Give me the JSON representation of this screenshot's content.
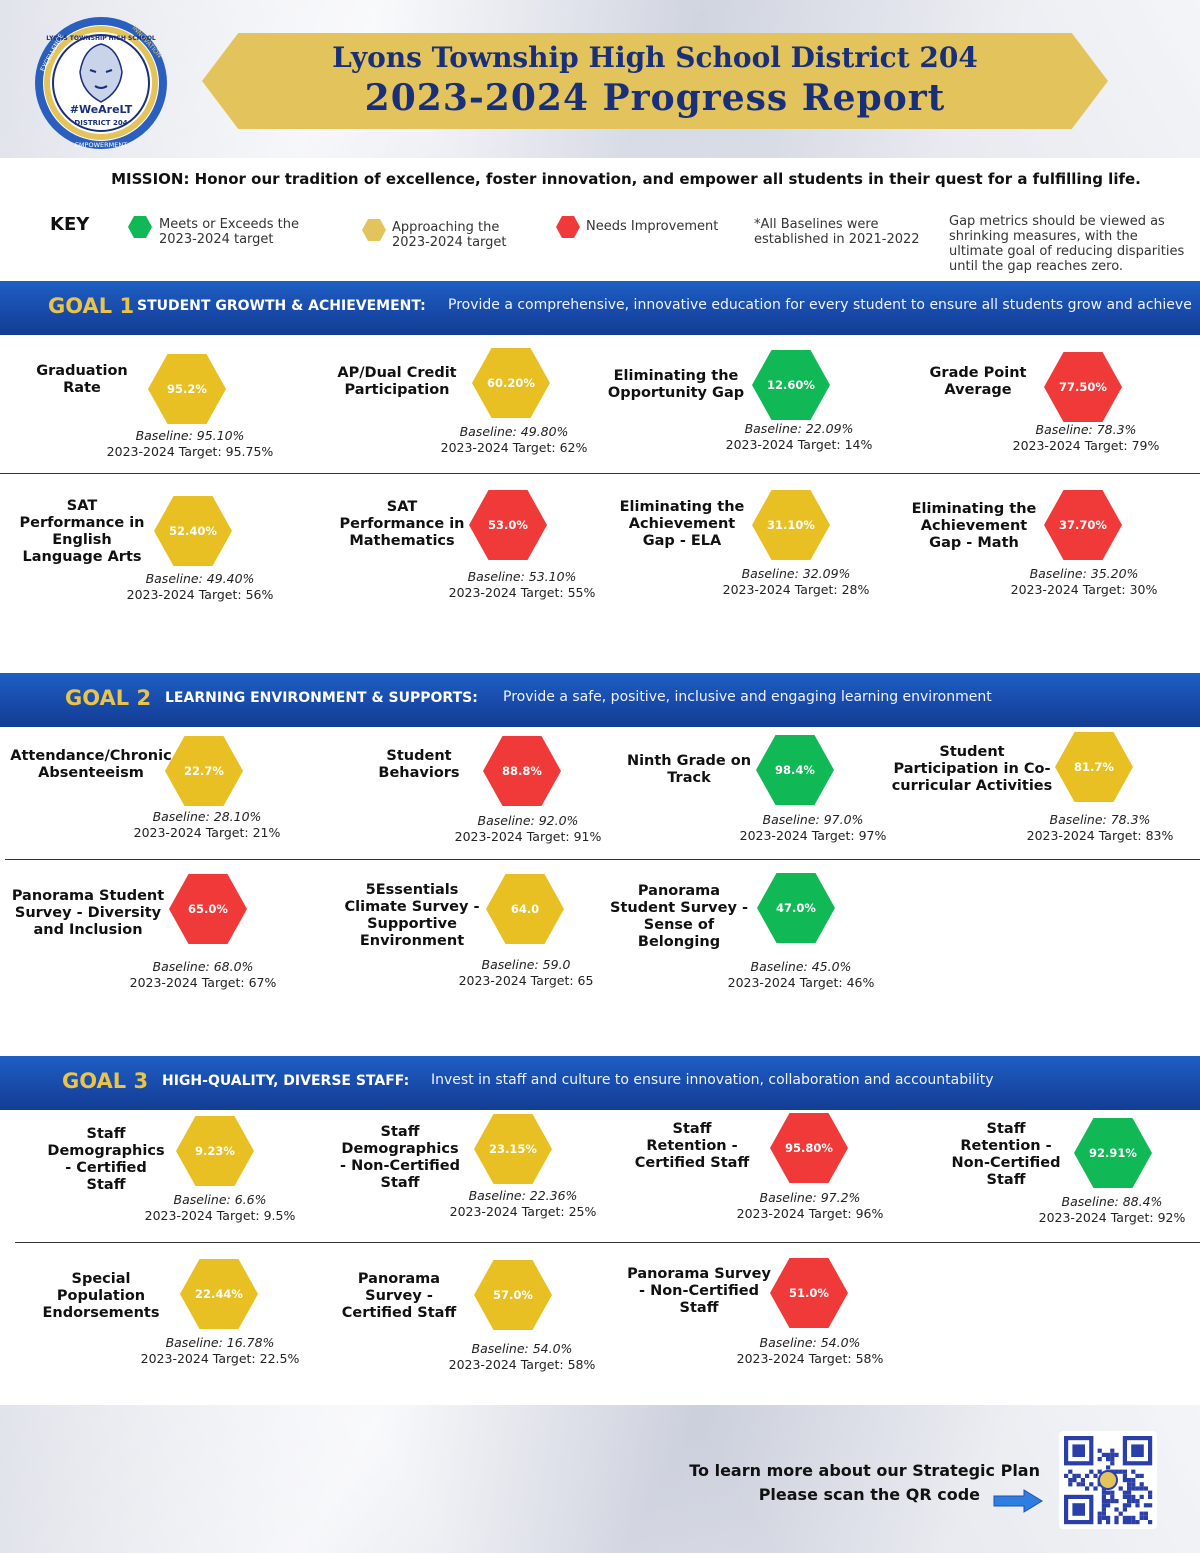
{
  "header": {
    "title_line1": "Lyons Township High School District 204",
    "title_line2": "2023-2024 Progress Report",
    "logo": {
      "ring_top": "LYONS TOWNSHIP HIGH SCHOOL",
      "ring_left": "EXCELLENCE",
      "ring_right": "INNOVATION",
      "ring_bottom": "EMPOWERMENT",
      "hashtag": "#WeAreLT",
      "district": "DISTRICT 204"
    }
  },
  "mission": "MISSION: Honor our tradition of excellence, foster innovation, and empower all students in their quest for a fulfilling life.",
  "key": {
    "title": "KEY",
    "meets_l1": "Meets or Exceeds the",
    "meets_l2": "2023-2024 target",
    "approach_l1": "Approaching the",
    "approach_l2": "2023-2024 target",
    "needs": "Needs Improvement",
    "baseline_l1": "*All Baselines were",
    "baseline_l2": "established in 2021-2022",
    "gap_l1": "Gap metrics should be viewed as",
    "gap_l2": "shrinking measures, with the",
    "gap_l3": "ultimate goal of reducing disparities",
    "gap_l4": "until the gap reaches zero.",
    "colors": {
      "green": "#10b856",
      "yellow": "#e3c45c",
      "red": "#f03a3a"
    }
  },
  "goals": [
    {
      "label": "GOAL 1",
      "name": "STUDENT GROWTH & ACHIEVEMENT:",
      "desc": "Provide a comprehensive, innovative education for every student to ensure all students grow and achieve",
      "metrics": [
        {
          "t1": "Graduation",
          "t2": "Rate",
          "value": "95.2%",
          "status": "yellow",
          "baseline": "Baseline: 95.10%",
          "target": "2023-2024 Target: 95.75%"
        },
        {
          "t1": "AP/Dual Credit",
          "t2": "Participation",
          "value": "60.20%",
          "status": "yellow",
          "baseline": "Baseline: 49.80%",
          "target": "2023-2024 Target: 62%"
        },
        {
          "t1": "Eliminating the",
          "t2": "Opportunity Gap",
          "value": "12.60%",
          "status": "green",
          "baseline": "Baseline: 22.09%",
          "target": "2023-2024 Target: 14%"
        },
        {
          "t1": "Grade Point",
          "t2": "Average",
          "value": "77.50%",
          "status": "red",
          "baseline": "Baseline: 78.3%",
          "target": "2023-2024 Target: 79%"
        },
        {
          "t1": "SAT",
          "t2": "Performance in",
          "t3": "English",
          "t4": "Language Arts",
          "value": "52.40%",
          "status": "yellow",
          "baseline": "Baseline: 49.40%",
          "target": "2023-2024 Target: 56%"
        },
        {
          "t1": "SAT",
          "t2": "Performance in",
          "t3": "Mathematics",
          "value": "53.0%",
          "status": "red",
          "baseline": "Baseline: 53.10%",
          "target": "2023-2024 Target: 55%"
        },
        {
          "t1": "Eliminating the",
          "t2": "Achievement",
          "t3": "Gap - ELA",
          "value": "31.10%",
          "status": "yellow",
          "baseline": "Baseline: 32.09%",
          "target": "2023-2024 Target: 28%"
        },
        {
          "t1": "Eliminating the",
          "t2": "Achievement",
          "t3": "Gap - Math",
          "value": "37.70%",
          "status": "red",
          "baseline": "Baseline: 35.20%",
          "target": "2023-2024 Target: 30%"
        }
      ]
    },
    {
      "label": "GOAL 2",
      "name": "LEARNING ENVIRONMENT & SUPPORTS:",
      "desc": "Provide a safe, positive, inclusive and engaging learning environment",
      "metrics": [
        {
          "t1": "Attendance/Chronic",
          "t2": "Absenteeism",
          "value": "22.7%",
          "status": "yellow",
          "baseline": "Baseline: 28.10%",
          "target": "2023-2024 Target: 21%"
        },
        {
          "t1": "Student",
          "t2": "Behaviors",
          "value": "88.8%",
          "status": "red",
          "baseline": "Baseline: 92.0%",
          "target": "2023-2024 Target: 91%"
        },
        {
          "t1": "Ninth Grade on",
          "t2": "Track",
          "value": "98.4%",
          "status": "green",
          "baseline": "Baseline: 97.0%",
          "target": "2023-2024 Target: 97%"
        },
        {
          "t1": "Student",
          "t2": "Participation in Co-",
          "t3": "curricular Activities",
          "value": "81.7%",
          "status": "yellow",
          "baseline": "Baseline: 78.3%",
          "target": "2023-2024 Target: 83%"
        },
        {
          "t1": "Panorama Student",
          "t2": "Survey - Diversity",
          "t3": "and Inclusion",
          "value": "65.0%",
          "status": "red",
          "baseline": "Baseline: 68.0%",
          "target": "2023-2024 Target: 67%"
        },
        {
          "t1": "5Essentials",
          "t2": "Climate Survey -",
          "t3": "Supportive",
          "t4": "Environment",
          "value": "64.0",
          "status": "yellow",
          "baseline": "Baseline: 59.0",
          "target": "2023-2024 Target: 65"
        },
        {
          "t1": "Panorama",
          "t2": "Student Survey -",
          "t3": "Sense of",
          "t4": "Belonging",
          "value": "47.0%",
          "status": "green",
          "baseline": "Baseline: 45.0%",
          "target": "2023-2024 Target: 46%"
        }
      ]
    },
    {
      "label": "GOAL 3",
      "name": "HIGH-QUALITY, DIVERSE STAFF:",
      "desc": "Invest in staff and culture to ensure innovation, collaboration and accountability",
      "metrics": [
        {
          "t1": "Staff",
          "t2": "Demographics",
          "t3": "- Certified",
          "t4": "Staff",
          "value": "9.23%",
          "status": "yellow",
          "baseline": "Baseline: 6.6%",
          "target": "2023-2024 Target: 9.5%"
        },
        {
          "t1": "Staff",
          "t2": "Demographics",
          "t3": "- Non-Certified",
          "t4": "Staff",
          "value": "23.15%",
          "status": "yellow",
          "baseline": "Baseline: 22.36%",
          "target": "2023-2024 Target: 25%"
        },
        {
          "t1": "Staff",
          "t2": "Retention -",
          "t3": "Certified Staff",
          "value": "95.80%",
          "status": "red",
          "baseline": "Baseline: 97.2%",
          "target": "2023-2024 Target: 96%"
        },
        {
          "t1": "Staff",
          "t2": "Retention -",
          "t3": "Non-Certified",
          "t4": "Staff",
          "value": "92.91%",
          "status": "green",
          "baseline": "Baseline: 88.4%",
          "target": "2023-2024 Target: 92%"
        },
        {
          "t1": "Special",
          "t2": "Population",
          "t3": "Endorsements",
          "value": "22.44%",
          "status": "yellow",
          "baseline": "Baseline: 16.78%",
          "target": "2023-2024 Target: 22.5%"
        },
        {
          "t1": "Panorama",
          "t2": "Survey -",
          "t3": "Certified Staff",
          "value": "57.0%",
          "status": "yellow",
          "baseline": "Baseline: 54.0%",
          "target": "2023-2024 Target: 58%"
        },
        {
          "t1": "Panorama Survey",
          "t2": "- Non-Certified",
          "t3": "Staff",
          "value": "51.0%",
          "status": "red",
          "baseline": "Baseline: 54.0%",
          "target": "2023-2024 Target: 58%"
        }
      ]
    }
  ],
  "footer": {
    "line1": "To learn more about our Strategic Plan",
    "line2": "Please scan the QR code"
  }
}
